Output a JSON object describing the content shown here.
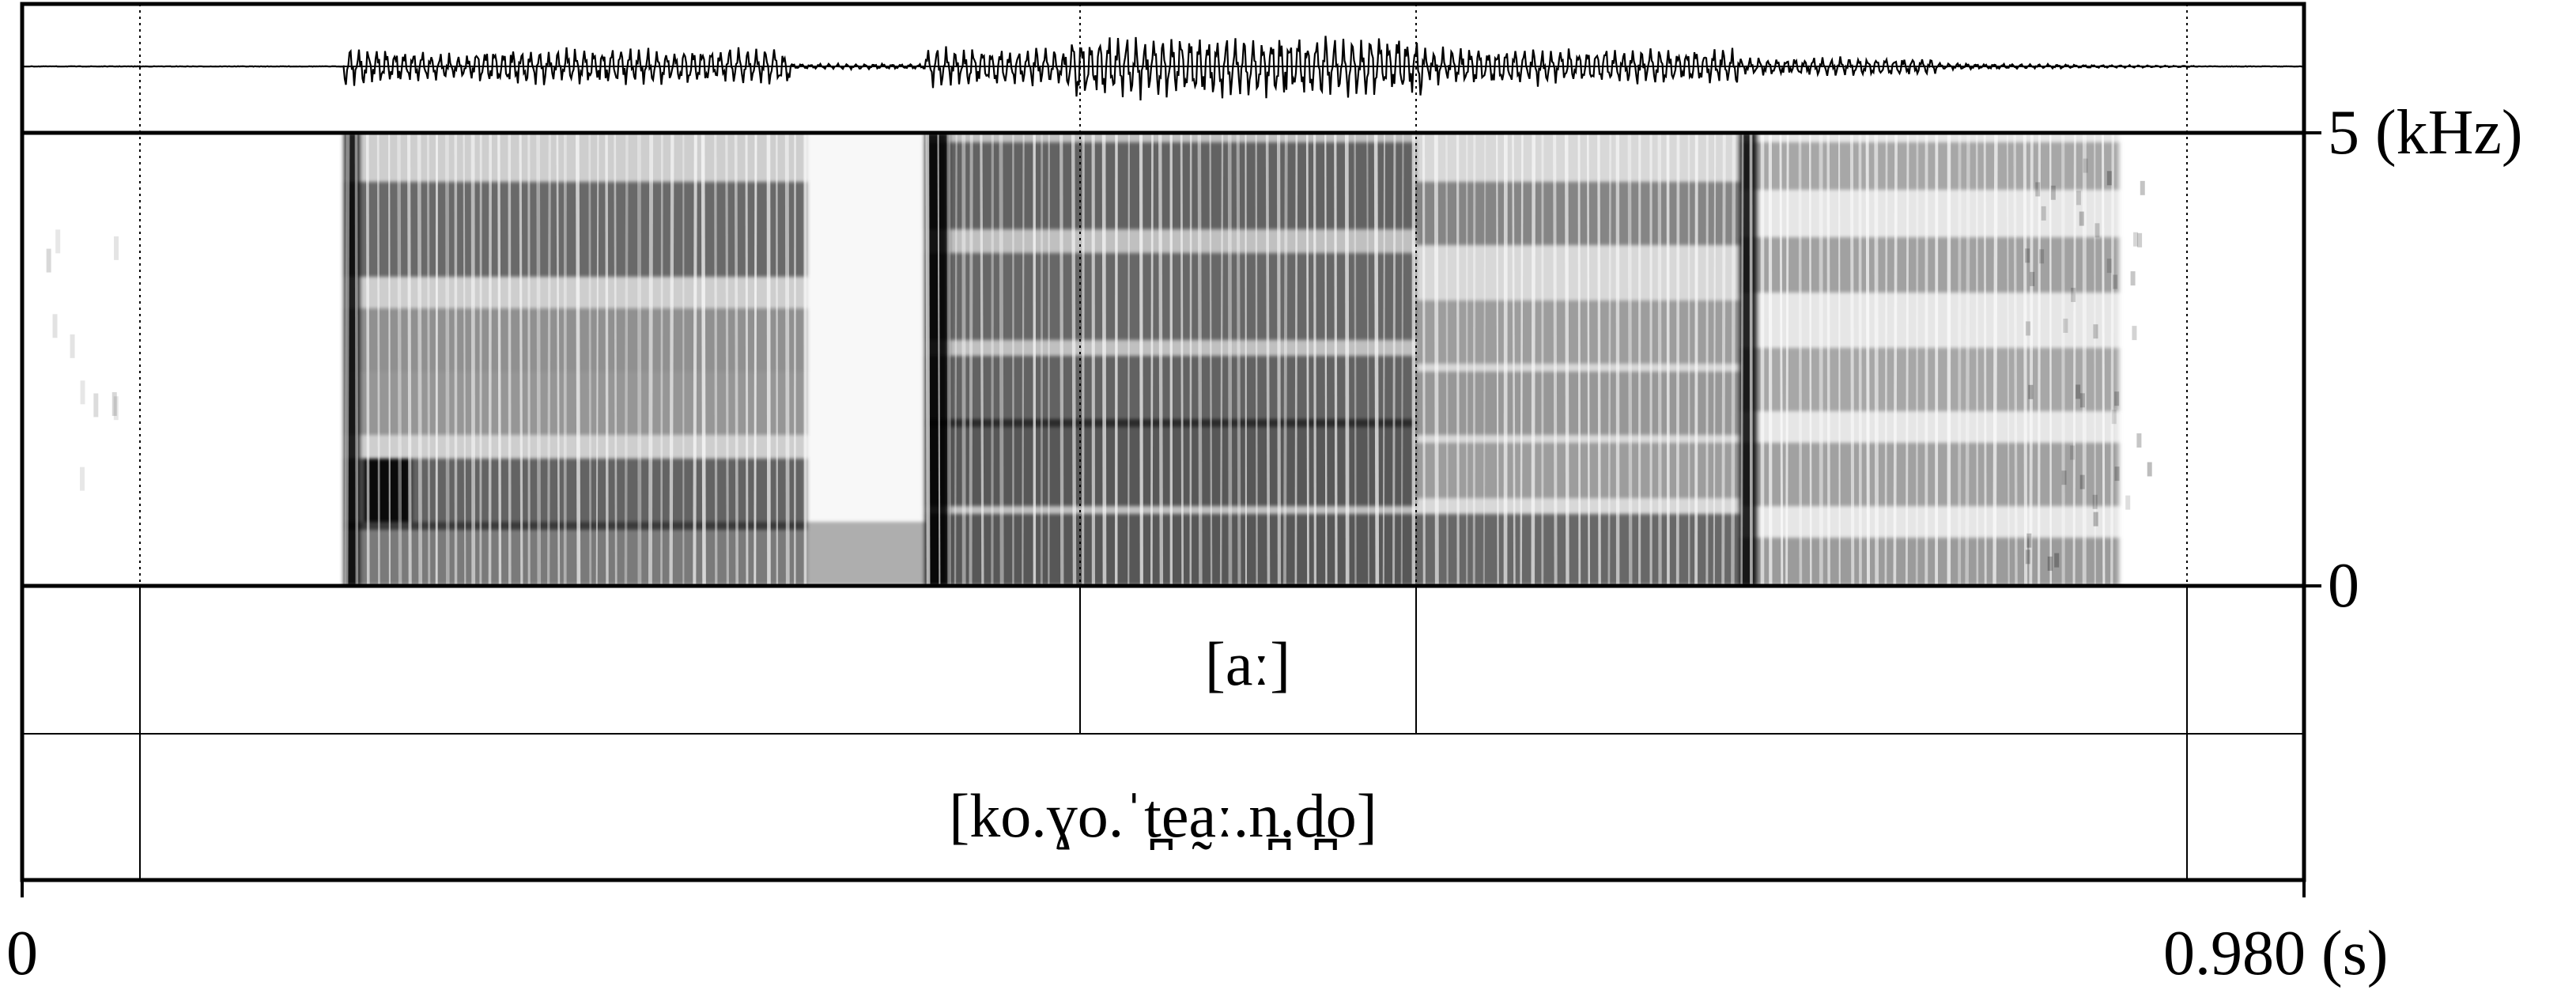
{
  "frequency_axis": {
    "top_label": "5 (kHz)",
    "bottom_label": "0"
  },
  "time_axis": {
    "start_label": "0",
    "end_label": "0.980 (s)"
  },
  "tiers": {
    "vowel_tier": {
      "label": "[aː]"
    },
    "word_tier": {
      "label": "[ko.ɣo.ˈt̪ea̰ː.n̪.d̪o]"
    }
  },
  "colors": {
    "ink": "#000000",
    "background": "#ffffff"
  }
}
